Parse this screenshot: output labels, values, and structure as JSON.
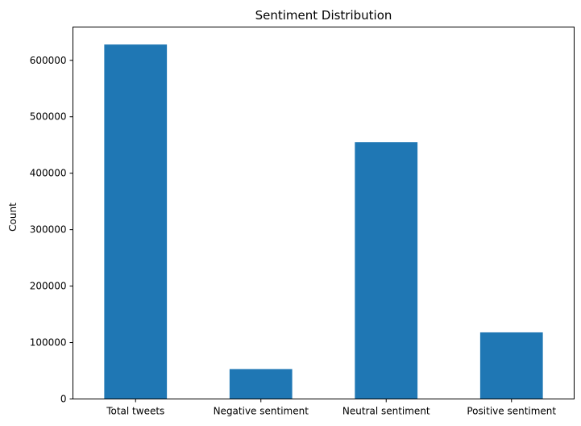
{
  "chart_data": {
    "type": "bar",
    "title": "Sentiment Distribution",
    "xlabel": "",
    "ylabel": "Count",
    "categories": [
      "Total tweets",
      "Negative sentiment",
      "Neutral sentiment",
      "Positive sentiment"
    ],
    "values": [
      628000,
      53000,
      455000,
      118000
    ],
    "ylim": [
      0,
      659000
    ],
    "yticks": [
      0,
      100000,
      200000,
      300000,
      400000,
      500000,
      600000
    ],
    "ytick_labels": [
      "0",
      "100000",
      "200000",
      "300000",
      "400000",
      "500000",
      "600000"
    ],
    "grid": false,
    "bar_color": "#1f77b4"
  }
}
